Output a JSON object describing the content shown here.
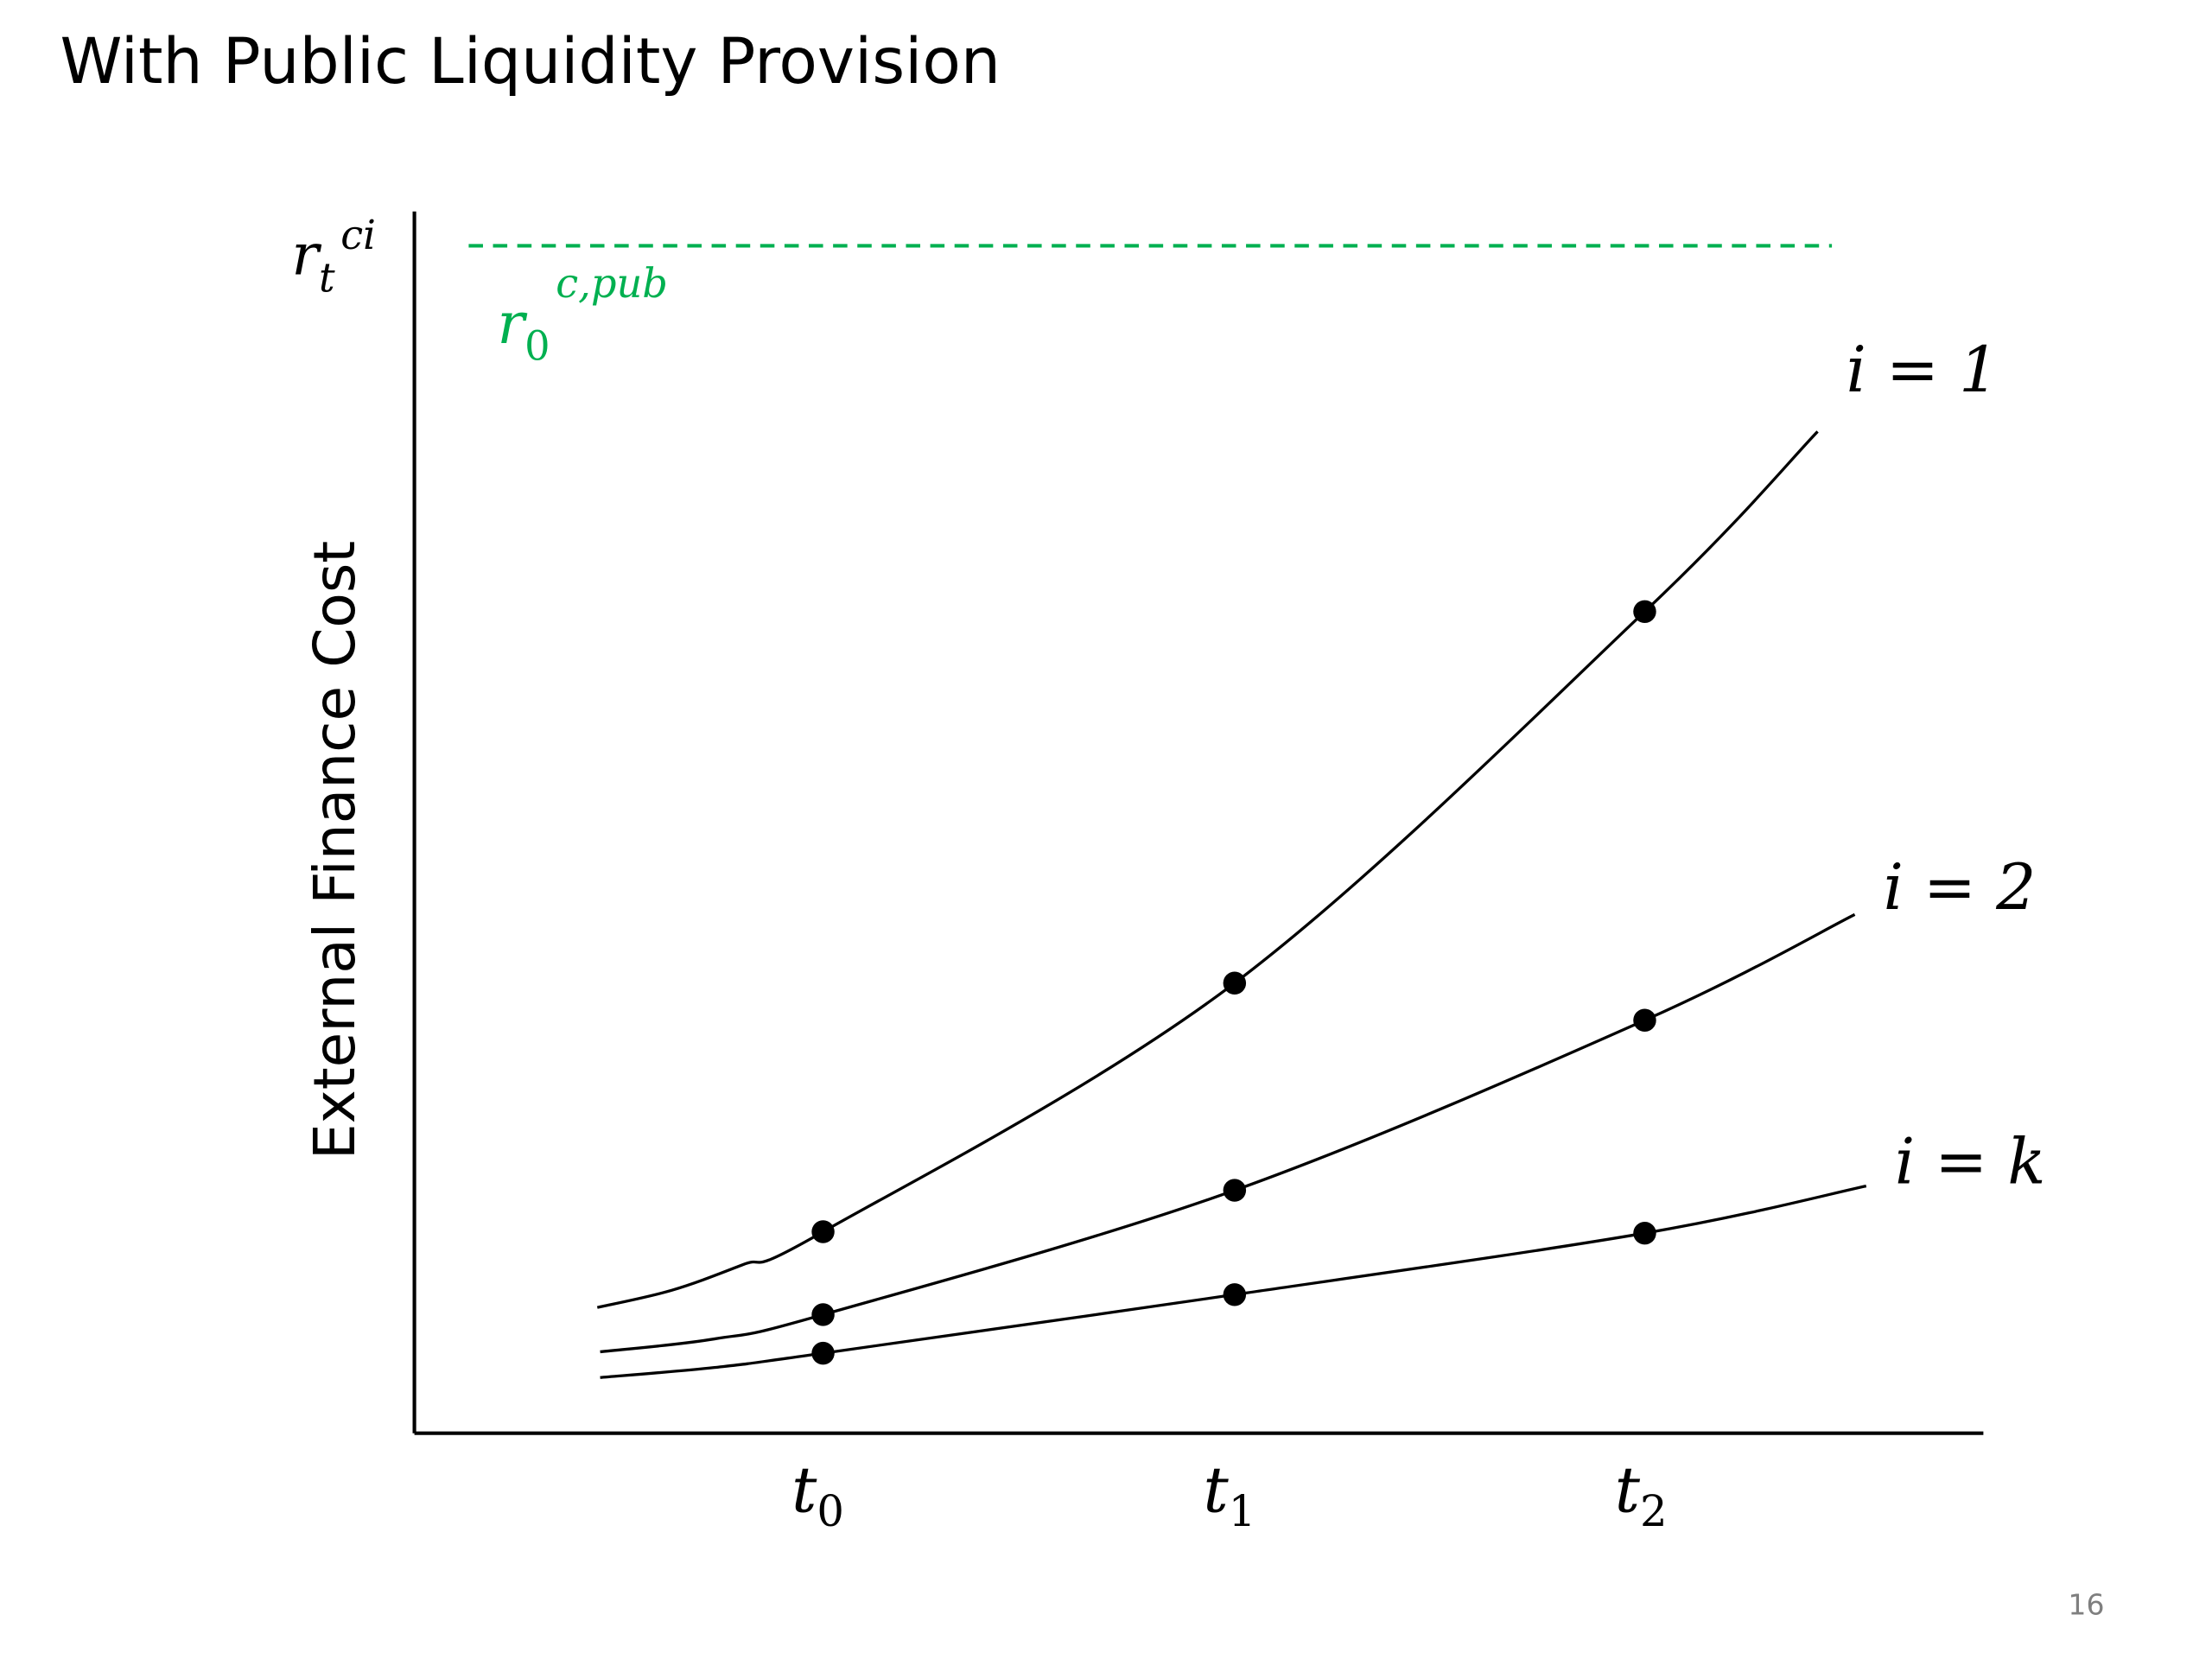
{
  "title": "With Public Liquidity Provision",
  "y_axis": {
    "label": "External Finance Cost",
    "top_label": {
      "base": "r",
      "sub": "t",
      "sup": "ci"
    }
  },
  "reference_line": {
    "label": {
      "base": "r",
      "sub": "0",
      "sup": "c,pub"
    }
  },
  "curves": [
    {
      "label": "i = 1"
    },
    {
      "label": "i = 2"
    },
    {
      "label": "i = k"
    }
  ],
  "x_ticks": [
    {
      "base": "t",
      "sub": "0"
    },
    {
      "base": "t",
      "sub": "1"
    },
    {
      "base": "t",
      "sub": "2"
    }
  ],
  "page_number": "16"
}
